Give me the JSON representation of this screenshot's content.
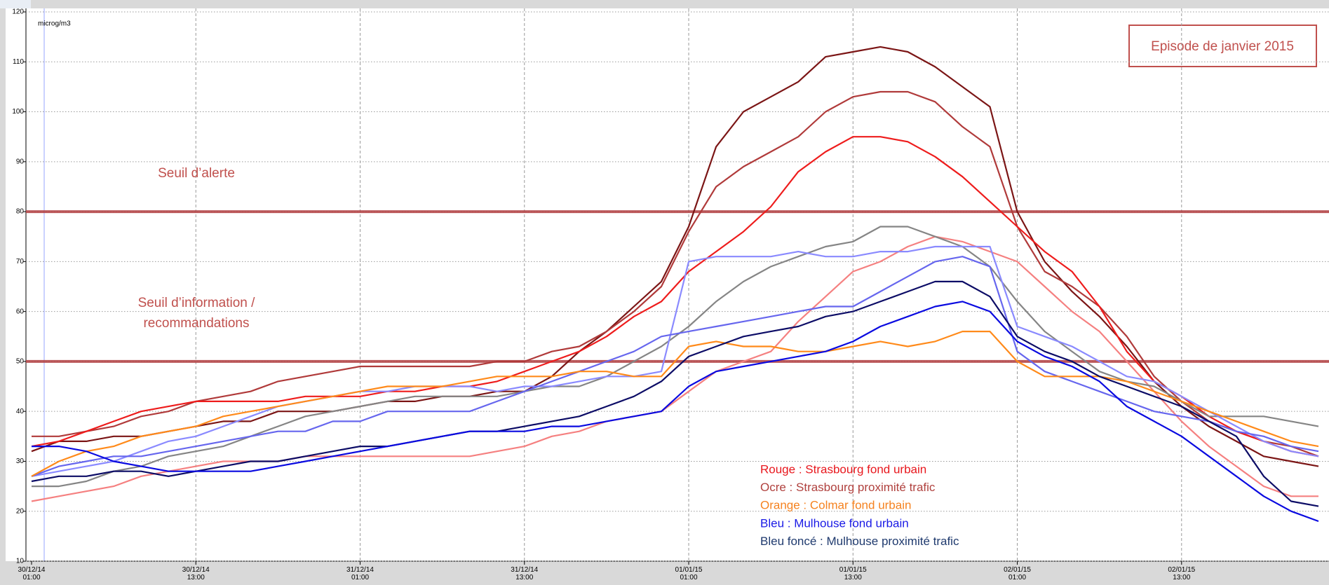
{
  "chart_data": {
    "type": "line",
    "unit_label": "microg/m3",
    "title": "Episode de janvier 2015",
    "categories": [
      "30/12/14 01:00",
      null,
      null,
      null,
      null,
      null,
      "30/12/14 13:00",
      null,
      null,
      null,
      null,
      null,
      "31/12/14 01:00",
      null,
      null,
      null,
      null,
      null,
      "31/12/14 13:00",
      null,
      null,
      null,
      null,
      null,
      "01/01/15 01:00",
      null,
      null,
      null,
      null,
      null,
      "01/01/15 13:00",
      null,
      null,
      null,
      null,
      null,
      "02/01/15 01:00",
      null,
      null,
      null,
      null,
      null,
      "02/01/15 13:00",
      null,
      null,
      null,
      null,
      null
    ],
    "ylim": [
      10,
      120
    ],
    "yticks": [
      10,
      20,
      30,
      40,
      50,
      60,
      70,
      80,
      90,
      100,
      110,
      120
    ],
    "grid": true,
    "thresholds": [
      {
        "value": 80,
        "label_lines": [
          "Seuil d’alerte"
        ]
      },
      {
        "value": 50,
        "label_lines": [
          "Seuil d’information /",
          "recommandations"
        ]
      }
    ],
    "threshold_color": "#b5484a",
    "annotations": [
      {
        "text": "Rouge : Strasbourg fond urbain",
        "color": "#e8171d"
      },
      {
        "text": "Ocre : Strasbourg proximité trafic",
        "color": "#b0413e"
      },
      {
        "text": "Orange : Colmar fond urbain",
        "color": "#f5821f"
      },
      {
        "text": "Bleu : Mulhouse fond urbain",
        "color": "#1a1ae6"
      },
      {
        "text": "Bleu foncé : Mulhouse proximité trafic",
        "color": "#1f3a6e"
      }
    ],
    "series": [
      {
        "color": "#7b1515",
        "values": [
          32,
          34,
          34,
          35,
          35,
          36,
          37,
          38,
          38,
          40,
          40,
          40,
          41,
          42,
          42,
          43,
          43,
          44,
          44,
          47,
          52,
          56,
          61,
          66,
          77,
          93,
          100,
          103,
          106,
          111,
          112,
          113,
          112,
          109,
          105,
          101,
          80,
          70,
          64,
          59,
          53,
          46,
          41,
          37,
          34,
          31,
          30,
          29
        ]
      },
      {
        "color": "#b03a3a",
        "values": [
          35,
          35,
          36,
          37,
          39,
          40,
          42,
          43,
          44,
          46,
          47,
          48,
          49,
          49,
          49,
          49,
          49,
          50,
          50,
          52,
          53,
          56,
          60,
          65,
          76,
          85,
          89,
          92,
          95,
          100,
          103,
          104,
          104,
          102,
          97,
          93,
          77,
          68,
          65,
          61,
          55,
          47,
          42,
          38,
          36,
          34,
          33,
          31
        ]
      },
      {
        "color": "#ee1c1c",
        "values": [
          33,
          34,
          36,
          38,
          40,
          41,
          42,
          42,
          42,
          42,
          43,
          43,
          43,
          44,
          44,
          45,
          45,
          46,
          48,
          50,
          52,
          55,
          59,
          62,
          68,
          72,
          76,
          81,
          88,
          92,
          95,
          95,
          94,
          91,
          87,
          82,
          77,
          72,
          68,
          61,
          52,
          46,
          43,
          39,
          36,
          34,
          32,
          31
        ]
      },
      {
        "color": "#f58080",
        "values": [
          22,
          23,
          24,
          25,
          27,
          28,
          29,
          30,
          30,
          30,
          31,
          31,
          31,
          31,
          31,
          31,
          31,
          32,
          33,
          35,
          36,
          38,
          39,
          40,
          44,
          48,
          50,
          52,
          58,
          63,
          68,
          70,
          73,
          75,
          74,
          72,
          70,
          65,
          60,
          56,
          50,
          44,
          38,
          33,
          29,
          25,
          23,
          23
        ]
      },
      {
        "color": "#858585",
        "values": [
          25,
          25,
          26,
          28,
          29,
          31,
          32,
          33,
          35,
          37,
          39,
          40,
          41,
          42,
          43,
          43,
          43,
          43,
          44,
          45,
          45,
          47,
          50,
          53,
          57,
          62,
          66,
          69,
          71,
          73,
          74,
          77,
          77,
          75,
          73,
          69,
          62,
          56,
          52,
          48,
          46,
          45,
          42,
          39,
          39,
          39,
          38,
          37
        ]
      },
      {
        "color": "#8a8aff",
        "values": [
          27,
          28,
          29,
          30,
          32,
          34,
          35,
          37,
          39,
          41,
          42,
          43,
          44,
          44,
          45,
          45,
          45,
          44,
          45,
          45,
          46,
          47,
          47,
          48,
          70,
          71,
          71,
          71,
          72,
          71,
          71,
          72,
          72,
          73,
          73,
          73,
          57,
          55,
          53,
          50,
          47,
          46,
          43,
          40,
          37,
          34,
          32,
          31
        ]
      },
      {
        "color": "#6666ee",
        "values": [
          27,
          29,
          30,
          31,
          31,
          32,
          33,
          34,
          35,
          36,
          36,
          38,
          38,
          40,
          40,
          40,
          40,
          42,
          44,
          46,
          48,
          50,
          52,
          55,
          56,
          57,
          58,
          59,
          60,
          61,
          61,
          64,
          67,
          70,
          71,
          69,
          52,
          48,
          46,
          44,
          42,
          40,
          39,
          38,
          36,
          35,
          33,
          32
        ]
      },
      {
        "color": "#ff8a1a",
        "values": [
          27,
          30,
          32,
          33,
          35,
          36,
          37,
          39,
          40,
          41,
          42,
          43,
          44,
          45,
          45,
          45,
          46,
          47,
          47,
          47,
          48,
          48,
          47,
          47,
          53,
          54,
          53,
          53,
          52,
          52,
          53,
          54,
          53,
          54,
          56,
          56,
          50,
          47,
          47,
          47,
          46,
          44,
          42,
          40,
          38,
          36,
          34,
          33
        ]
      },
      {
        "color": "#0c0c66",
        "values": [
          26,
          27,
          27,
          28,
          28,
          27,
          28,
          29,
          30,
          30,
          31,
          32,
          33,
          33,
          34,
          35,
          36,
          36,
          37,
          38,
          39,
          41,
          43,
          46,
          51,
          53,
          55,
          56,
          57,
          59,
          60,
          62,
          64,
          66,
          66,
          63,
          55,
          52,
          50,
          47,
          45,
          43,
          41,
          38,
          35,
          27,
          22,
          21
        ]
      },
      {
        "color": "#0a0ae0",
        "values": [
          33,
          33,
          32,
          30,
          29,
          28,
          28,
          28,
          28,
          29,
          30,
          31,
          32,
          33,
          34,
          35,
          36,
          36,
          36,
          37,
          37,
          38,
          39,
          40,
          45,
          48,
          49,
          50,
          51,
          52,
          54,
          57,
          59,
          61,
          62,
          60,
          54,
          51,
          49,
          46,
          41,
          38,
          35,
          31,
          27,
          23,
          20,
          18
        ]
      }
    ]
  }
}
